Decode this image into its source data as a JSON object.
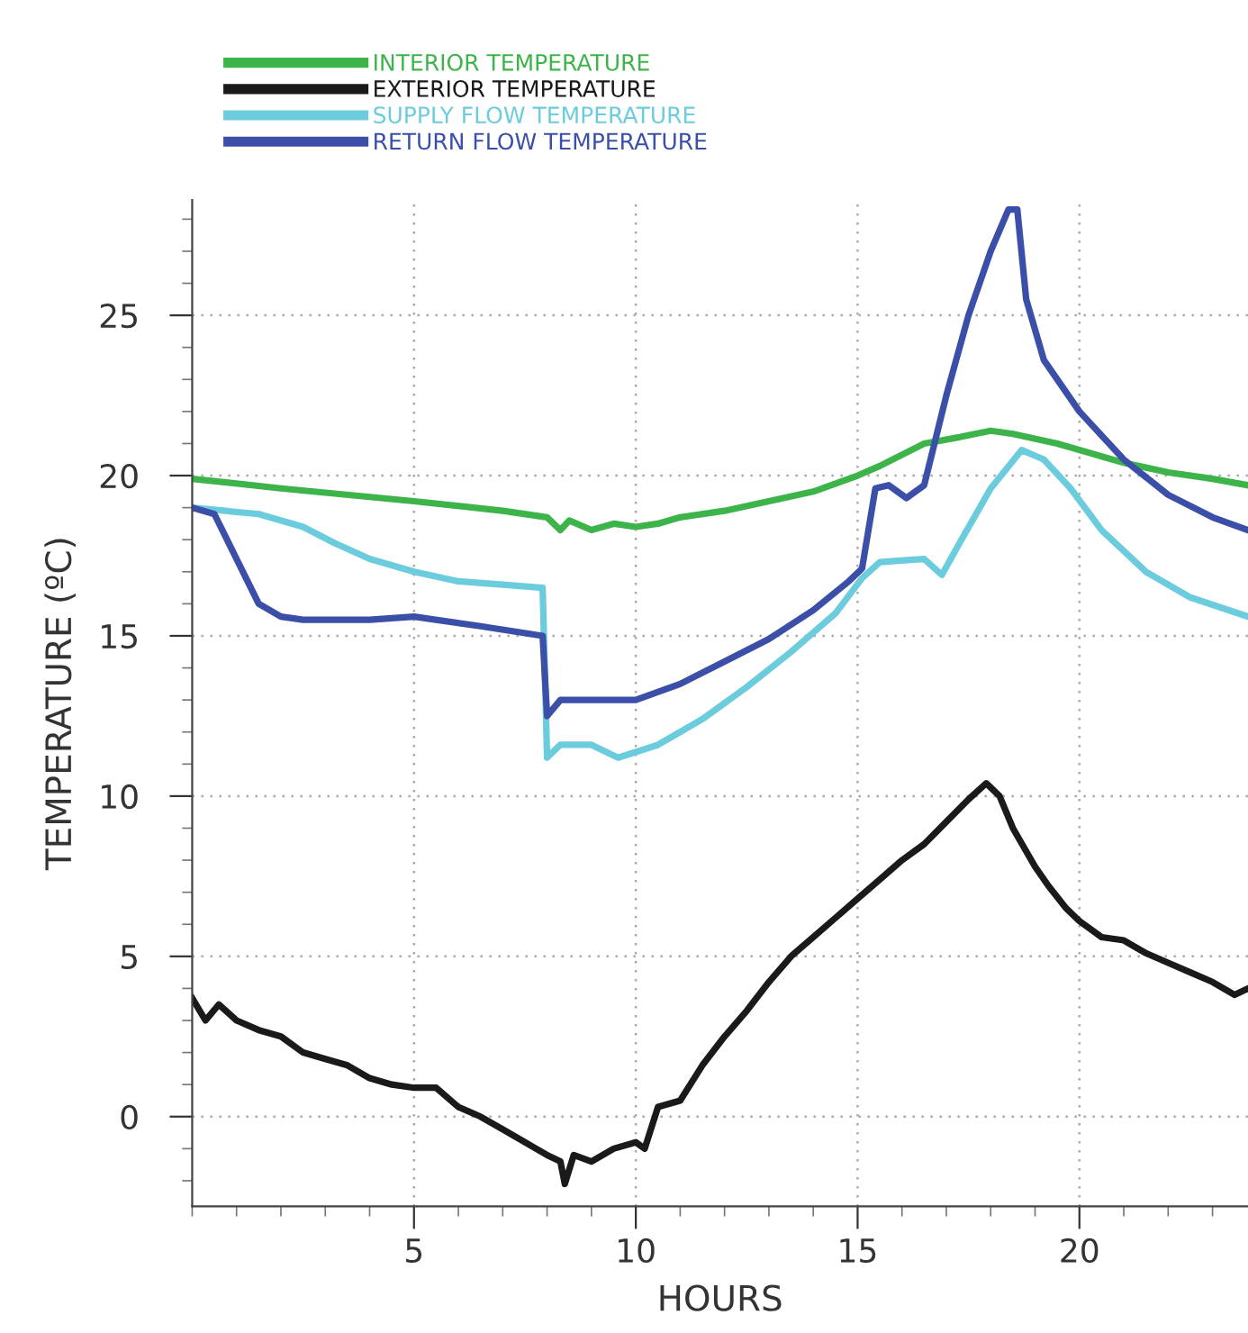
{
  "chart_data": {
    "type": "line",
    "xlabel": "HOURS",
    "ylabel": "TEMPERATURE (ºC)",
    "xlim": [
      0,
      23.8
    ],
    "ylim": [
      -2.8,
      28.6
    ],
    "xticks": [
      5,
      10,
      15,
      20
    ],
    "yticks": [
      0,
      5,
      10,
      15,
      20,
      25
    ],
    "grid": true,
    "legend": "top",
    "marker": "none",
    "line_style": "solid",
    "series": [
      {
        "name": "INTERIOR TEMPERATURE",
        "color": "#3cb44a",
        "x": [
          0,
          2,
          5,
          7,
          8,
          8.3,
          8.5,
          9,
          9.5,
          10,
          10.5,
          11,
          12,
          13,
          14,
          15,
          15.5,
          16.5,
          17.3,
          18,
          18.5,
          19.5,
          20.5,
          21,
          22,
          23,
          23.8
        ],
        "values": [
          19.9,
          19.6,
          19.2,
          18.9,
          18.7,
          18.3,
          18.6,
          18.3,
          18.5,
          18.4,
          18.5,
          18.7,
          18.9,
          19.2,
          19.5,
          20.0,
          20.3,
          21.0,
          21.2,
          21.4,
          21.3,
          21.0,
          20.6,
          20.4,
          20.1,
          19.9,
          19.7
        ]
      },
      {
        "name": "EXTERIOR TEMPERATURE",
        "color": "#1a1a1a",
        "x": [
          0,
          0.3,
          0.6,
          1,
          1.5,
          2,
          2.5,
          3,
          3.5,
          4,
          4.5,
          5,
          5.5,
          6,
          6.5,
          7,
          7.5,
          8,
          8.3,
          8.4,
          8.6,
          9,
          9.5,
          10,
          10.2,
          10.5,
          11,
          11.5,
          12,
          12.5,
          13,
          13.5,
          14,
          14.5,
          15,
          15.5,
          16,
          16.5,
          17,
          17.5,
          17.9,
          18.2,
          18.5,
          19,
          19.3,
          19.7,
          20,
          20.5,
          21,
          21.5,
          22,
          22.5,
          23,
          23.5,
          23.8
        ],
        "values": [
          3.7,
          3.0,
          3.5,
          3.0,
          2.7,
          2.5,
          2.0,
          1.8,
          1.6,
          1.2,
          1.0,
          0.9,
          0.9,
          0.3,
          0.0,
          -0.4,
          -0.8,
          -1.2,
          -1.4,
          -2.1,
          -1.2,
          -1.4,
          -1.0,
          -0.8,
          -1.0,
          0.3,
          0.5,
          1.6,
          2.5,
          3.3,
          4.2,
          5.0,
          5.6,
          6.2,
          6.8,
          7.4,
          8.0,
          8.5,
          9.2,
          9.9,
          10.4,
          10.0,
          9.0,
          7.8,
          7.2,
          6.5,
          6.1,
          5.6,
          5.5,
          5.1,
          4.8,
          4.5,
          4.2,
          3.8,
          4.0
        ]
      },
      {
        "name": "SUPPLY FLOW TEMPERATURE",
        "color": "#6accdc",
        "x": [
          0,
          1.5,
          2.5,
          3.2,
          4,
          5,
          6,
          7,
          7.9,
          8.0,
          8.3,
          9,
          9.6,
          10.5,
          11.5,
          12.5,
          13.5,
          14.5,
          15.1,
          15.5,
          16.5,
          16.9,
          17.3,
          18.0,
          18.7,
          19.2,
          19.8,
          20.5,
          21.5,
          22.5,
          23.8
        ],
        "values": [
          19.0,
          18.8,
          18.4,
          17.9,
          17.4,
          17.0,
          16.7,
          16.6,
          16.5,
          11.2,
          11.6,
          11.6,
          11.2,
          11.6,
          12.4,
          13.4,
          14.5,
          15.7,
          16.8,
          17.3,
          17.4,
          16.9,
          17.9,
          19.6,
          20.8,
          20.5,
          19.6,
          18.3,
          17.0,
          16.2,
          15.6
        ]
      },
      {
        "name": "RETURN FLOW TEMPERATURE",
        "color": "#3b4fa8",
        "x": [
          0,
          0.5,
          1.0,
          1.5,
          2.0,
          2.5,
          4,
          5,
          6.5,
          7.9,
          8.0,
          8.3,
          9,
          10,
          11,
          12,
          13,
          14,
          14.8,
          15.1,
          15.4,
          15.7,
          16.1,
          16.5,
          17.0,
          17.5,
          18.0,
          18.4,
          18.6,
          18.8,
          19.2,
          20,
          21,
          22,
          23,
          23.8
        ],
        "values": [
          19.0,
          18.8,
          17.4,
          16.0,
          15.6,
          15.5,
          15.5,
          15.6,
          15.3,
          15.0,
          12.5,
          13.0,
          13.0,
          13.0,
          13.5,
          14.2,
          14.9,
          15.8,
          16.7,
          17.1,
          19.6,
          19.7,
          19.3,
          19.7,
          22.5,
          25.0,
          27.0,
          28.3,
          28.3,
          25.5,
          23.6,
          22.0,
          20.5,
          19.4,
          18.7,
          18.3
        ]
      }
    ]
  }
}
